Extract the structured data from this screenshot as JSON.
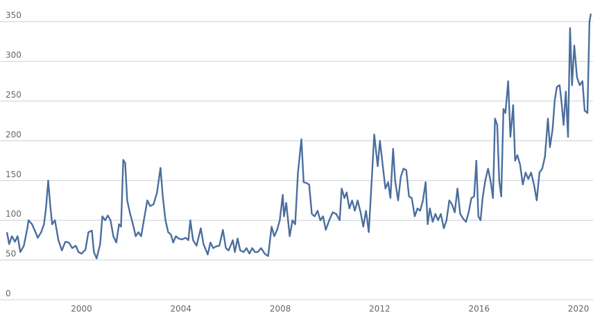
{
  "chart_data": {
    "type": "line",
    "x": [
      1997.0,
      1997.09,
      1997.2,
      1997.32,
      1997.43,
      1997.54,
      1997.68,
      1997.82,
      1997.87,
      1998.01,
      1998.15,
      1998.24,
      1998.38,
      1998.49,
      1998.57,
      1998.66,
      1998.74,
      1998.82,
      1998.93,
      1999.07,
      1999.21,
      1999.35,
      1999.49,
      1999.63,
      1999.77,
      1999.88,
      2000.0,
      2000.16,
      2000.28,
      2000.42,
      2000.5,
      2000.61,
      2000.75,
      2000.84,
      2000.95,
      2001.06,
      2001.17,
      2001.28,
      2001.4,
      2001.51,
      2001.59,
      2001.68,
      2001.76,
      2001.84,
      2001.96,
      2002.07,
      2002.18,
      2002.29,
      2002.4,
      2002.51,
      2002.65,
      2002.76,
      2002.9,
      2003.04,
      2003.18,
      2003.27,
      2003.38,
      2003.49,
      2003.6,
      2003.69,
      2003.8,
      2003.91,
      2004.05,
      2004.19,
      2004.3,
      2004.38,
      2004.49,
      2004.63,
      2004.8,
      2004.91,
      2005.08,
      2005.19,
      2005.3,
      2005.41,
      2005.55,
      2005.69,
      2005.81,
      2005.92,
      2006.09,
      2006.17,
      2006.28,
      2006.39,
      2006.53,
      2006.64,
      2006.76,
      2006.87,
      2006.98,
      2007.09,
      2007.23,
      2007.37,
      2007.51,
      2007.65,
      2007.76,
      2007.87,
      2007.98,
      2008.1,
      2008.15,
      2008.24,
      2008.38,
      2008.49,
      2008.6,
      2008.71,
      2008.85,
      2008.94,
      2009.05,
      2009.16,
      2009.27,
      2009.38,
      2009.5,
      2009.61,
      2009.72,
      2009.83,
      2009.97,
      2010.11,
      2010.25,
      2010.39,
      2010.47,
      2010.58,
      2010.67,
      2010.78,
      2010.89,
      2011.0,
      2011.11,
      2011.23,
      2011.34,
      2011.45,
      2011.56,
      2011.67,
      2011.78,
      2011.92,
      2012.01,
      2012.12,
      2012.23,
      2012.34,
      2012.43,
      2012.54,
      2012.62,
      2012.74,
      2012.85,
      2012.96,
      2013.07,
      2013.18,
      2013.29,
      2013.41,
      2013.52,
      2013.63,
      2013.74,
      2013.85,
      2013.93,
      2014.02,
      2014.13,
      2014.24,
      2014.35,
      2014.46,
      2014.58,
      2014.69,
      2014.8,
      2014.91,
      2015.02,
      2015.13,
      2015.24,
      2015.36,
      2015.47,
      2015.58,
      2015.69,
      2015.8,
      2015.89,
      2015.97,
      2016.06,
      2016.14,
      2016.25,
      2016.36,
      2016.47,
      2016.56,
      2016.64,
      2016.73,
      2016.81,
      2016.89,
      2016.98,
      2017.06,
      2017.17,
      2017.26,
      2017.37,
      2017.45,
      2017.54,
      2017.65,
      2017.76,
      2017.87,
      2017.98,
      2018.09,
      2018.21,
      2018.32,
      2018.43,
      2018.54,
      2018.65,
      2018.77,
      2018.85,
      2018.96,
      2019.04,
      2019.13,
      2019.24,
      2019.32,
      2019.4,
      2019.49,
      2019.58,
      2019.66,
      2019.74,
      2019.83,
      2019.94,
      2020.05,
      2020.16,
      2020.25,
      2020.36,
      2020.44,
      2020.5
    ],
    "series": [
      {
        "color": "#4a6e9e",
        "values": [
          85,
          70,
          80,
          73,
          80,
          60,
          68,
          90,
          100,
          95,
          85,
          78,
          85,
          95,
          115,
          150,
          120,
          95,
          100,
          75,
          62,
          73,
          72,
          65,
          68,
          60,
          58,
          63,
          85,
          87,
          60,
          52,
          70,
          105,
          100,
          106,
          100,
          80,
          72,
          95,
          92,
          176,
          172,
          125,
          108,
          95,
          80,
          85,
          80,
          100,
          125,
          118,
          120,
          135,
          166,
          130,
          100,
          85,
          82,
          72,
          80,
          77,
          76,
          78,
          75,
          100,
          75,
          68,
          90,
          70,
          57,
          72,
          65,
          67,
          68,
          88,
          65,
          62,
          75,
          60,
          77,
          62,
          60,
          65,
          58,
          65,
          60,
          60,
          65,
          58,
          55,
          92,
          80,
          88,
          100,
          132,
          105,
          122,
          80,
          100,
          95,
          160,
          202,
          148,
          147,
          145,
          108,
          105,
          112,
          100,
          105,
          88,
          100,
          110,
          108,
          100,
          140,
          128,
          135,
          115,
          125,
          112,
          125,
          110,
          92,
          112,
          85,
          145,
          208,
          168,
          200,
          170,
          140,
          148,
          128,
          190,
          150,
          125,
          155,
          165,
          163,
          130,
          128,
          105,
          115,
          112,
          125,
          148,
          95,
          115,
          98,
          108,
          100,
          108,
          90,
          100,
          125,
          120,
          110,
          140,
          108,
          102,
          98,
          110,
          128,
          130,
          175,
          105,
          100,
          128,
          150,
          165,
          148,
          128,
          228,
          220,
          150,
          130,
          240,
          235,
          275,
          205,
          245,
          175,
          182,
          170,
          145,
          160,
          152,
          160,
          145,
          125,
          160,
          165,
          180,
          228,
          192,
          215,
          250,
          268,
          270,
          248,
          220,
          262,
          205,
          342,
          270,
          320,
          280,
          270,
          275,
          238,
          235,
          350,
          360
        ]
      }
    ],
    "xlim": [
      1997,
      2020.5
    ],
    "xticks": [
      2000,
      2004,
      2008,
      2012,
      2016,
      2020
    ],
    "ylim": [
      0,
      365
    ],
    "yticks": [
      0,
      50,
      100,
      150,
      200,
      250,
      300,
      350
    ],
    "grid": true
  }
}
